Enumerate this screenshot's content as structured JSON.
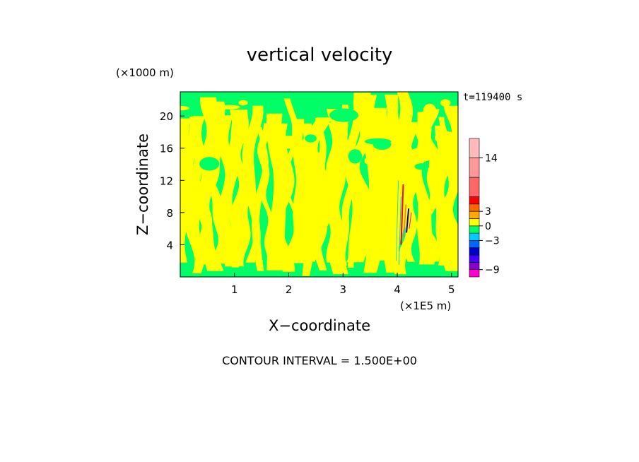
{
  "chart_data": {
    "type": "heatmap",
    "title": "vertical velocity",
    "xlabel": "X−coordinate",
    "ylabel": "Z−coordinate",
    "x_unit": "(×1E5 m)",
    "y_unit": "(×1000 m)",
    "time_label": "t=119400 s",
    "footer": "CONTOUR INTERVAL = 1.500E+00",
    "xlim": [
      0,
      5.12
    ],
    "ylim": [
      0,
      23
    ],
    "x_ticks": [
      {
        "value": 1,
        "label": "1"
      },
      {
        "value": 2,
        "label": "2"
      },
      {
        "value": 3,
        "label": "3"
      },
      {
        "value": 4,
        "label": "4"
      },
      {
        "value": 5,
        "label": "5"
      }
    ],
    "y_ticks": [
      {
        "value": 4,
        "label": "4"
      },
      {
        "value": 8,
        "label": "8"
      },
      {
        "value": 12,
        "label": "12"
      },
      {
        "value": 16,
        "label": "16"
      },
      {
        "value": 20,
        "label": "20"
      }
    ],
    "field_colors": {
      "positive": "#ffff00",
      "negative": "#00ff66"
    },
    "colorbar": {
      "segments": [
        {
          "value": -9,
          "color": "#ff00cc"
        },
        {
          "value": -7.5,
          "color": "#8800cc"
        },
        {
          "value": -6,
          "color": "#4400ff"
        },
        {
          "value": -4.5,
          "color": "#0000cc"
        },
        {
          "value": -3,
          "color": "#0066ff"
        },
        {
          "value": -1.5,
          "color": "#00ccff"
        },
        {
          "value": 0,
          "color": "#00ff66"
        },
        {
          "value": 1.5,
          "color": "#ffff00"
        },
        {
          "value": 3,
          "color": "#ffaa00"
        },
        {
          "value": 4.5,
          "color": "#ff6600"
        },
        {
          "value": 6,
          "color": "#ff0000"
        },
        {
          "value": 10,
          "color": "#ff6666"
        },
        {
          "value": 14,
          "color": "#ff9999"
        },
        {
          "value": 18,
          "color": "#ffbbbb"
        }
      ],
      "labels": [
        {
          "value": 14,
          "label": "14"
        },
        {
          "value": 3,
          "label": "3"
        },
        {
          "value": 0,
          "label": "0"
        },
        {
          "value": -3,
          "label": "−3"
        },
        {
          "value": -9,
          "label": "−9"
        }
      ]
    }
  }
}
